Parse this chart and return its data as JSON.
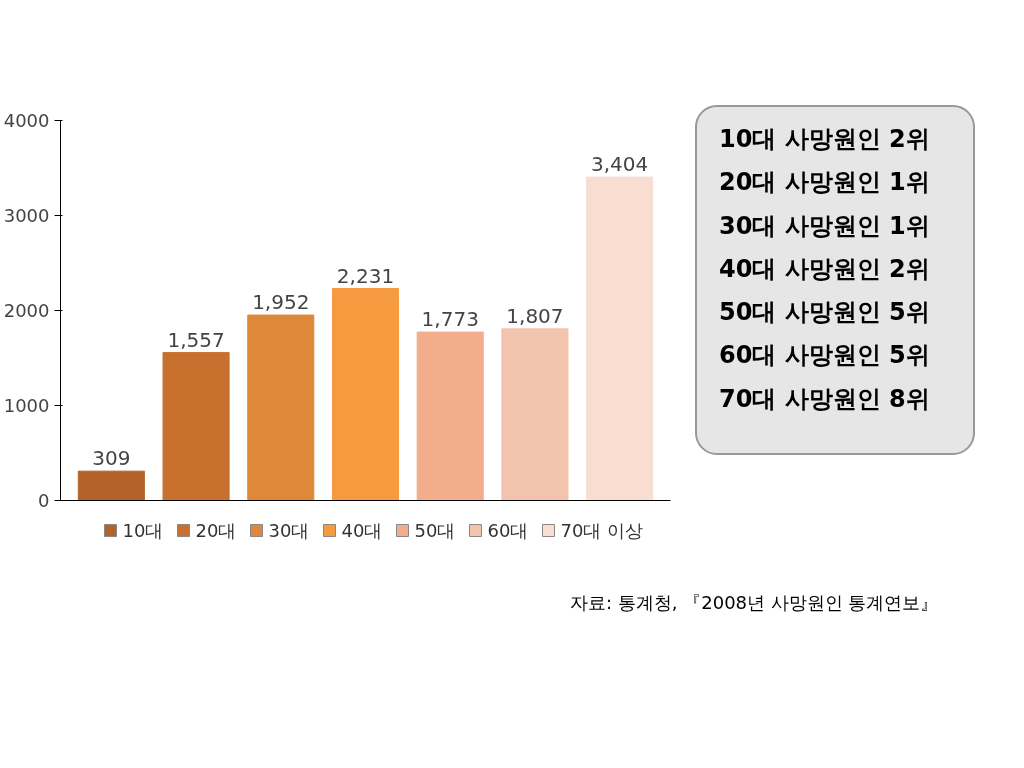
{
  "chart_data": {
    "type": "bar",
    "categories": [
      null
    ],
    "series": [
      {
        "name": "10대",
        "color": "#b5612a",
        "values": [
          309
        ],
        "value_labels": [
          "309"
        ]
      },
      {
        "name": "20대",
        "color": "#c8702e",
        "values": [
          1557
        ],
        "value_labels": [
          "1,557"
        ]
      },
      {
        "name": "30대",
        "color": "#e0883a",
        "values": [
          1952
        ],
        "value_labels": [
          "1,952"
        ]
      },
      {
        "name": "40대",
        "color": "#f59a3e",
        "values": [
          2231
        ],
        "value_labels": [
          "2,231"
        ]
      },
      {
        "name": "50대",
        "color": "#f3ad8a",
        "values": [
          1773
        ],
        "value_labels": [
          "1,773"
        ]
      },
      {
        "name": "60대",
        "color": "#f2c3ad",
        "values": [
          1807
        ],
        "value_labels": [
          "1,807"
        ]
      },
      {
        "name": "70대 이상",
        "color": "#f8ddd0",
        "values": [
          3404
        ],
        "value_labels": [
          "3,404"
        ]
      }
    ],
    "ylim": [
      0,
      4000
    ],
    "yticks": [
      0,
      1000,
      2000,
      3000,
      4000
    ],
    "grid": false,
    "legend": "bottom",
    "annotations": [
      "10대 사망원인 2위",
      "20대 사망원인 1위",
      "30대 사망원인 1위",
      "40대 사망원인 2위",
      "50대 사망원인 5위",
      "60대 사망원인 5위",
      "70대 사망원인 8위",
      "자료: 통계청, 『2008년 사망원인 통계연보』"
    ]
  }
}
